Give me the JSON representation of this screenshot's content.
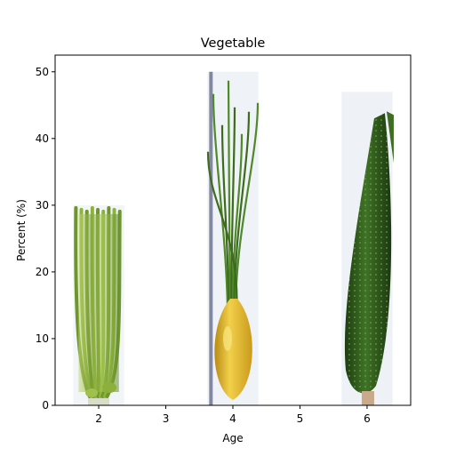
{
  "chart_data": {
    "type": "bar",
    "title": "Vegetable",
    "xlabel": "Age",
    "ylabel": "Percent (%)",
    "x": [
      2,
      4,
      6
    ],
    "values": [
      30,
      50,
      47
    ],
    "bar_images": [
      "celery",
      "green-onion",
      "cucumber"
    ],
    "xlim": [
      1.35,
      6.65
    ],
    "ylim": [
      0,
      52.5
    ],
    "xticks": [
      2,
      3,
      4,
      5,
      6
    ],
    "yticks": [
      0,
      10,
      20,
      30,
      40,
      50
    ],
    "grid": false,
    "colors": {
      "celery": "#8fb33a",
      "onion_stem": "#3f6b1e",
      "onion_bulb": "#e2b62a",
      "cucumber": "#2f5a1c",
      "bar_background": "#e8eef4"
    }
  }
}
